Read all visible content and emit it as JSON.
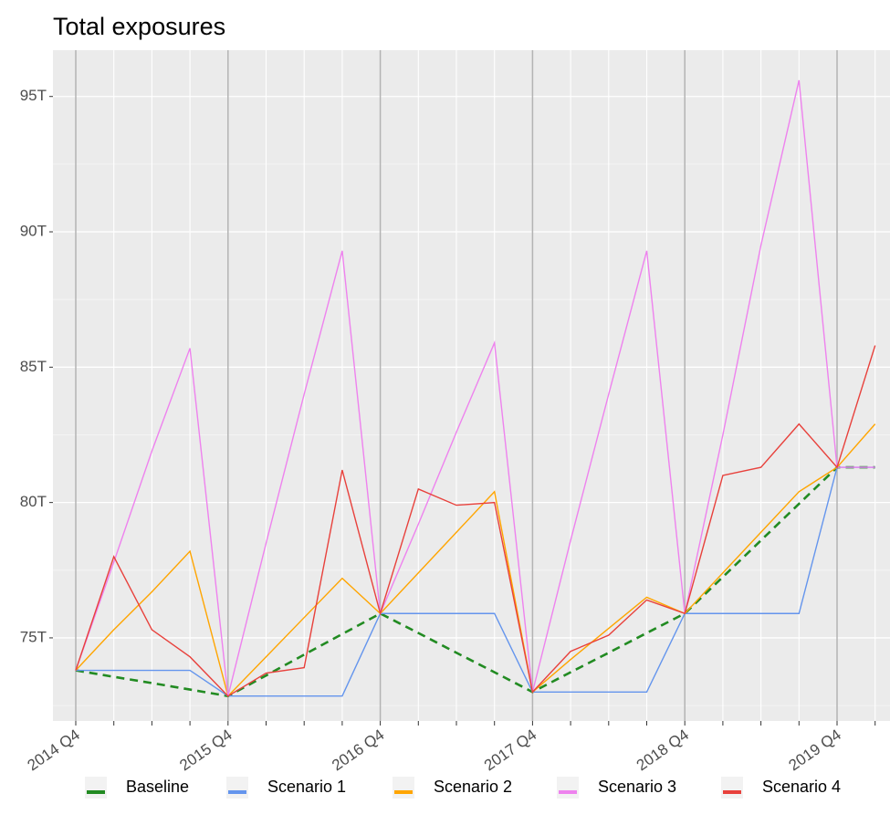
{
  "chart_data": {
    "type": "line",
    "title": "Total exposures",
    "categories": [
      "2014 Q4",
      null,
      null,
      null,
      "2015 Q4",
      null,
      null,
      null,
      "2016 Q4",
      null,
      null,
      null,
      "2017 Q4",
      null,
      null,
      null,
      "2018 Q4",
      null,
      null,
      null,
      "2019 Q4",
      null
    ],
    "ylim": [
      71.93,
      96.71
    ],
    "yticks": [
      {
        "value": 75,
        "label": "75T"
      },
      {
        "value": 80,
        "label": "80T"
      },
      {
        "value": 85,
        "label": "85T"
      },
      {
        "value": 90,
        "label": "90T"
      },
      {
        "value": 95,
        "label": "95T"
      }
    ],
    "grid": true,
    "legend": "bottom",
    "series": [
      {
        "name": "Baseline",
        "color": "#228b22",
        "dashed": true,
        "values": [
          73.8,
          73.56,
          73.33,
          73.09,
          72.85,
          73.61,
          74.38,
          75.14,
          75.9,
          75.18,
          74.45,
          73.73,
          73.0,
          73.73,
          74.45,
          75.18,
          75.9,
          77.25,
          78.6,
          79.95,
          81.3,
          81.3
        ]
      },
      {
        "name": "Scenario 1",
        "color": "#6495ed",
        "values": [
          73.8,
          73.8,
          73.8,
          73.8,
          72.85,
          72.85,
          72.85,
          72.85,
          75.9,
          75.9,
          75.9,
          75.9,
          73.0,
          73.0,
          73.0,
          73.0,
          75.9,
          75.9,
          75.9,
          75.9,
          81.3,
          81.3
        ]
      },
      {
        "name": "Scenario 2",
        "color": "#ffa500",
        "values": [
          73.8,
          75.3,
          76.7,
          78.2,
          72.85,
          74.3,
          75.75,
          77.2,
          75.9,
          77.4,
          78.9,
          80.4,
          73.0,
          74.2,
          75.35,
          76.5,
          75.9,
          77.4,
          78.9,
          80.4,
          81.3,
          82.9
        ]
      },
      {
        "name": "Scenario 3",
        "color": "#ee82ee",
        "values": [
          73.8,
          77.8,
          81.9,
          85.7,
          72.85,
          78.5,
          84.0,
          89.3,
          75.9,
          79.2,
          82.6,
          85.9,
          73.0,
          78.6,
          84.0,
          89.3,
          75.9,
          82.5,
          89.5,
          95.6,
          81.3,
          81.3
        ]
      },
      {
        "name": "Scenario 4",
        "color": "#e8413c",
        "values": [
          73.8,
          78.0,
          75.3,
          74.3,
          72.85,
          73.7,
          73.9,
          81.2,
          75.9,
          80.5,
          79.9,
          80.0,
          73.0,
          74.5,
          75.1,
          76.4,
          75.9,
          81.0,
          81.3,
          82.9,
          81.3,
          85.8
        ]
      }
    ]
  }
}
